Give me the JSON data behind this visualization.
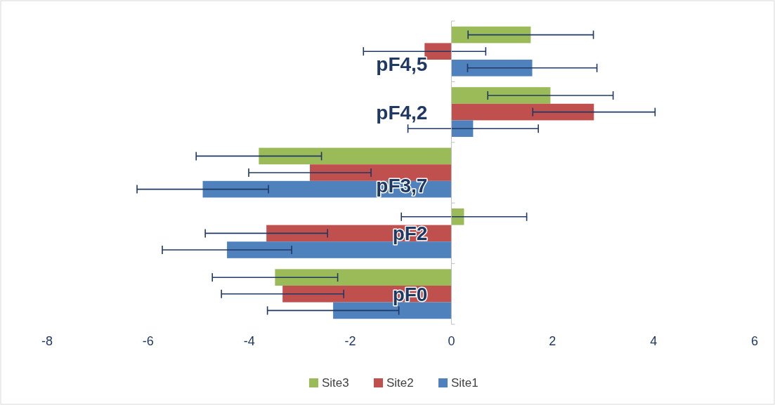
{
  "chart_data": {
    "type": "bar",
    "orientation": "horizontal",
    "categories": [
      "pF4,5",
      "pF4,2",
      "pF3,7",
      "pF2",
      "pF0"
    ],
    "series": [
      {
        "name": "Site3",
        "color": "#9bbb59",
        "values": [
          1.57,
          1.96,
          -3.81,
          0.25,
          -3.49
        ],
        "errors": [
          1.24,
          1.24,
          1.24,
          1.24,
          1.24
        ]
      },
      {
        "name": "Site2",
        "color": "#c0504d",
        "values": [
          -0.53,
          2.82,
          -2.8,
          -3.66,
          -3.34
        ],
        "errors": [
          1.21,
          1.21,
          1.21,
          1.21,
          1.21
        ]
      },
      {
        "name": "Site1",
        "color": "#4f81bd",
        "values": [
          1.6,
          0.43,
          -4.92,
          -4.44,
          -2.34
        ],
        "errors": [
          1.28,
          1.29,
          1.3,
          1.28,
          1.3
        ]
      }
    ],
    "xlim": [
      -8,
      6
    ],
    "xticks": [
      -8,
      -6,
      -4,
      -2,
      0,
      2,
      4,
      6
    ],
    "grid": false,
    "legend": "bottom"
  }
}
